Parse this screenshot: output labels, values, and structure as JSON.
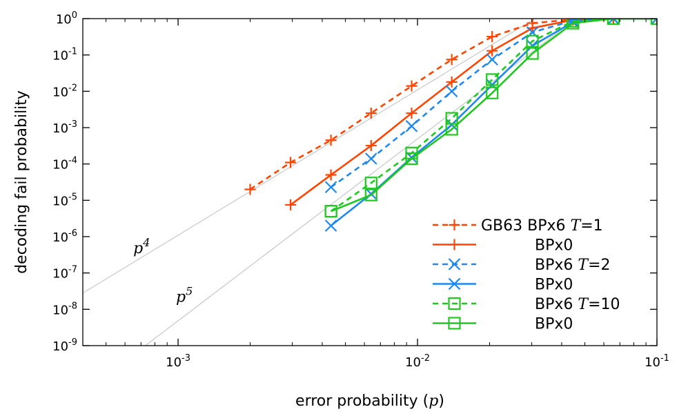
{
  "chart_data": {
    "type": "line",
    "xlabel": "error probability",
    "xlabel_symbol": "p",
    "ylabel": "decoding fail probability",
    "x_scale": "log",
    "y_scale": "log",
    "xlim": [
      0.0004,
      0.1
    ],
    "ylim": [
      1e-09,
      1
    ],
    "grid": false,
    "legend_position": "bottom-right",
    "x_ticks": [
      {
        "value": 0.001,
        "base": "10",
        "exp": "-3"
      },
      {
        "value": 0.01,
        "base": "10",
        "exp": "-2"
      },
      {
        "value": 0.1,
        "base": "10",
        "exp": "-1"
      }
    ],
    "y_ticks": [
      {
        "value": 1,
        "base": "10",
        "exp": "0"
      },
      {
        "value": 0.1,
        "base": "10",
        "exp": "-1"
      },
      {
        "value": 0.01,
        "base": "10",
        "exp": "-2"
      },
      {
        "value": 0.001,
        "base": "10",
        "exp": "-3"
      },
      {
        "value": 0.0001,
        "base": "10",
        "exp": "-4"
      },
      {
        "value": 1e-05,
        "base": "10",
        "exp": "-5"
      },
      {
        "value": 1e-06,
        "base": "10",
        "exp": "-6"
      },
      {
        "value": 1e-07,
        "base": "10",
        "exp": "-7"
      },
      {
        "value": 1e-08,
        "base": "10",
        "exp": "-8"
      },
      {
        "value": 1e-09,
        "base": "10",
        "exp": "-9"
      }
    ],
    "reference_lines": [
      {
        "label_base": "p",
        "label_exp": "4",
        "exponent": 4,
        "x": [
          0.0004,
          0.0316
        ],
        "y": [
          2.8e-08,
          1.09
        ],
        "label_x": 0.00065,
        "label_y": 3.5e-07
      },
      {
        "label_base": "p",
        "label_exp": "5",
        "exponent": 5,
        "x": [
          0.00073,
          0.0477
        ],
        "y": [
          1e-09,
          1.22
        ],
        "label_x": 0.00098,
        "label_y": 1.6e-08
      }
    ],
    "series": [
      {
        "name": "GB63 BPx6 T=1",
        "name_prefix": "GB63 BPx6 ",
        "name_T": "T",
        "name_suffix": "=1",
        "color": "#ff4400",
        "dashed": true,
        "marker": "plus",
        "x": [
          0.002,
          0.00295,
          0.00435,
          0.0064,
          0.00945,
          0.0139,
          0.0205,
          0.0302,
          0.0446,
          0.0658,
          0.1
        ],
        "y": [
          2e-05,
          0.00011,
          0.00045,
          0.0025,
          0.014,
          0.075,
          0.32,
          0.75,
          0.95,
          1.0,
          1.0
        ]
      },
      {
        "name": "BPx0",
        "name_prefix": "BPx0",
        "color": "#ff4400",
        "dashed": false,
        "marker": "plus",
        "x": [
          0.00295,
          0.00435,
          0.0064,
          0.00945,
          0.0139,
          0.0205,
          0.0302,
          0.0446,
          0.0658,
          0.1
        ],
        "y": [
          7.5e-06,
          5e-05,
          0.00032,
          0.0025,
          0.018,
          0.13,
          0.55,
          0.92,
          1.0,
          1.0
        ]
      },
      {
        "name": "BPx6 T=2",
        "name_prefix": "BPx6 ",
        "name_T": "T",
        "name_suffix": "=2",
        "color": "#1e87f0",
        "dashed": true,
        "marker": "cross",
        "x": [
          0.00435,
          0.0064,
          0.00945,
          0.0139,
          0.0205,
          0.0302,
          0.0446,
          0.0658,
          0.1
        ],
        "y": [
          2.3e-05,
          0.00014,
          0.0011,
          0.01,
          0.075,
          0.42,
          0.88,
          1.0,
          1.0
        ]
      },
      {
        "name": "BPx0",
        "name_prefix": "BPx0",
        "color": "#1e87f0",
        "dashed": false,
        "marker": "cross",
        "x": [
          0.00435,
          0.0064,
          0.00945,
          0.0139,
          0.0205,
          0.0302,
          0.0446,
          0.0658,
          0.1
        ],
        "y": [
          2e-06,
          1.5e-05,
          0.00015,
          0.0012,
          0.015,
          0.18,
          0.8,
          1.0,
          1.0
        ]
      },
      {
        "name": "BPx6 T=10",
        "name_prefix": "BPx6 ",
        "name_T": "T",
        "name_suffix": "=10",
        "color": "#1ec81e",
        "dashed": true,
        "marker": "square",
        "x": [
          0.00435,
          0.0064,
          0.00945,
          0.0139,
          0.0205,
          0.0302,
          0.0446,
          0.0658,
          0.1
        ],
        "y": [
          5e-06,
          3e-05,
          0.0002,
          0.0018,
          0.021,
          0.24,
          0.85,
          1.0,
          1.0
        ]
      },
      {
        "name": "BPx0",
        "name_prefix": "BPx0",
        "color": "#1ec81e",
        "dashed": false,
        "marker": "square",
        "x": [
          0.00435,
          0.0064,
          0.00945,
          0.0139,
          0.0205,
          0.0302,
          0.0446,
          0.0658,
          0.1
        ],
        "y": [
          5e-06,
          1.4e-05,
          0.00014,
          0.0009,
          0.009,
          0.11,
          0.75,
          1.0,
          1.0
        ]
      }
    ]
  }
}
